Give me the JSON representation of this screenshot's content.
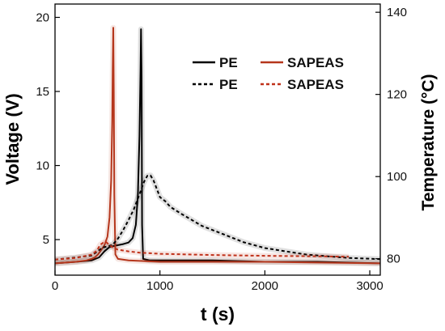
{
  "chart_data": {
    "type": "line",
    "xlabel": "t (s)",
    "ylabel_left": "Voltage (V)",
    "ylabel_right": "Temperature (°C)",
    "xlim": [
      0,
      3100
    ],
    "ylim_left": [
      2.6,
      20.9
    ],
    "ylim_right": [
      76,
      142
    ],
    "x_ticks": [
      "0",
      "1000",
      "2000",
      "3000"
    ],
    "y_ticks_left": [
      "5",
      "10",
      "15",
      "20"
    ],
    "y_ticks_right": [
      "80",
      "100",
      "120",
      "140"
    ],
    "grid": false,
    "legend_position": "top-right",
    "colors": {
      "pe": "#000000",
      "sapeas": "#b5361c",
      "sapeas_dashed": "#c0311a"
    },
    "series": [
      {
        "name": "PE",
        "axis": "left",
        "style": "solid",
        "color": "#000000",
        "x": [
          0,
          200,
          350,
          420,
          470,
          520,
          580,
          650,
          700,
          740,
          770,
          790,
          805,
          815,
          820,
          825,
          830,
          840,
          900,
          1000,
          1500,
          2000,
          2500,
          3100
        ],
        "y": [
          3.4,
          3.5,
          3.6,
          3.8,
          4.2,
          4.5,
          4.6,
          4.7,
          4.8,
          5.1,
          6.0,
          8.0,
          12.0,
          16.5,
          19.2,
          16.0,
          6.0,
          3.7,
          3.6,
          3.6,
          3.6,
          3.5,
          3.5,
          3.4
        ]
      },
      {
        "name": "SAPEAS",
        "axis": "left",
        "style": "solid",
        "color": "#b5361c",
        "x": [
          0,
          200,
          300,
          350,
          380,
          410,
          430,
          470,
          500,
          520,
          535,
          545,
          550,
          555,
          560,
          565,
          575,
          600,
          700,
          1000,
          2000,
          3100
        ],
        "y": [
          3.4,
          3.5,
          3.6,
          3.7,
          3.8,
          4.0,
          4.2,
          4.6,
          5.2,
          6.5,
          9.0,
          13.0,
          16.5,
          19.3,
          15.0,
          8.0,
          4.0,
          3.7,
          3.6,
          3.5,
          3.5,
          3.4
        ]
      },
      {
        "name": "PE",
        "axis": "right",
        "style": "dashed",
        "color": "#000000",
        "x": [
          0,
          200,
          350,
          420,
          450,
          500,
          550,
          600,
          650,
          700,
          750,
          800,
          850,
          880,
          910,
          940,
          970,
          1000,
          1050,
          1100,
          1200,
          1400,
          1600,
          1800,
          2000,
          2200,
          2400,
          2600,
          2800,
          3000,
          3100
        ],
        "y": [
          79.8,
          80.3,
          80.8,
          82.1,
          82.7,
          83.0,
          83.4,
          84.9,
          87.0,
          89.4,
          92.0,
          95.3,
          98.8,
          100.2,
          100.3,
          99.0,
          97.0,
          95.0,
          94.0,
          92.6,
          91.0,
          88.0,
          86.0,
          84.0,
          82.6,
          81.8,
          81.0,
          80.6,
          80.2,
          80.0,
          79.9
        ]
      },
      {
        "name": "SAPEAS",
        "axis": "right",
        "style": "dashed",
        "color": "#c0311a",
        "x": [
          0,
          200,
          350,
          400,
          430,
          460,
          490,
          520,
          560,
          600,
          700,
          800,
          1000,
          1500,
          2000,
          2500,
          2800
        ],
        "y": [
          79.8,
          80.2,
          81.0,
          82.0,
          83.4,
          83.9,
          84.0,
          83.3,
          82.6,
          82.2,
          81.8,
          81.5,
          81.2,
          80.9,
          80.7,
          80.6,
          80.5
        ]
      }
    ]
  }
}
